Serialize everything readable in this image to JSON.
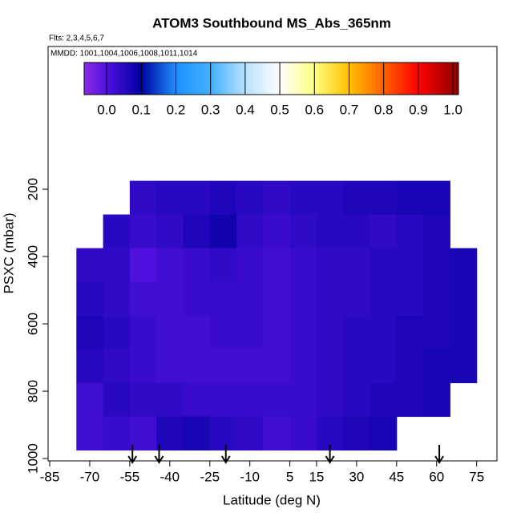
{
  "chart_data": {
    "type": "heatmap",
    "title": "ATOM3 Southbound MS_Abs_365nm",
    "subtitle": "Flts: 2,3,4,5,6,7",
    "annotation": "MMDD: 1001,1004,1006,1008,1011,1014",
    "x_label": "Latitude (deg N)",
    "y_label": "PSXC (mbar)",
    "xlim": [
      -85.6,
      82.6
    ],
    "xticks": [
      -85,
      -70,
      -55,
      -40,
      -25,
      -10,
      5,
      15,
      30,
      45,
      60,
      75
    ],
    "ylim": [
      1007,
      -224
    ],
    "yticks": [
      200,
      400,
      600,
      800,
      1000
    ],
    "xbins": [
      -75,
      -65,
      -55,
      -45,
      -35,
      -25,
      -15,
      -5,
      5,
      15,
      25,
      35,
      45,
      55,
      65,
      75
    ],
    "ybins": [
      175,
      275,
      375,
      475,
      575,
      675,
      775,
      875,
      975
    ],
    "z": [
      [
        null,
        null,
        0.04,
        0.05,
        0.05,
        0.06,
        0.05,
        0.04,
        0.05,
        0.05,
        0.06,
        0.06,
        0.07,
        0.07,
        null
      ],
      [
        null,
        0.05,
        0.03,
        0.04,
        0.06,
        0.08,
        0.04,
        0.03,
        0.04,
        0.05,
        0.05,
        0.04,
        0.05,
        0.06,
        null
      ],
      [
        0.04,
        0.04,
        0.0,
        0.02,
        0.03,
        0.04,
        0.03,
        0.02,
        0.03,
        0.04,
        0.04,
        0.05,
        0.05,
        0.06,
        0.07
      ],
      [
        0.05,
        0.04,
        0.02,
        0.02,
        0.03,
        0.03,
        0.03,
        0.02,
        0.03,
        0.04,
        0.04,
        0.05,
        0.05,
        0.06,
        0.07
      ],
      [
        0.06,
        0.05,
        0.03,
        0.02,
        0.02,
        0.03,
        0.03,
        0.02,
        0.03,
        0.04,
        0.05,
        0.05,
        0.06,
        0.06,
        0.07
      ],
      [
        0.05,
        0.04,
        0.03,
        0.02,
        0.02,
        0.02,
        0.02,
        0.02,
        0.03,
        0.04,
        0.05,
        0.05,
        0.06,
        0.07,
        0.07
      ],
      [
        0.02,
        0.05,
        0.04,
        0.04,
        0.03,
        0.03,
        0.03,
        0.03,
        0.03,
        0.04,
        0.05,
        0.06,
        0.06,
        0.07,
        null
      ],
      [
        0.02,
        0.03,
        0.02,
        0.06,
        0.07,
        0.05,
        0.04,
        0.02,
        0.03,
        0.05,
        0.06,
        0.07,
        null,
        null,
        null
      ]
    ],
    "colorbar": {
      "lim": [
        -0.065,
        1.016
      ],
      "ticks": [
        {
          "value": 0,
          "label": "0.0"
        },
        {
          "value": 0.1,
          "label": "0.1"
        },
        {
          "value": 0.2,
          "label": "0.2"
        },
        {
          "value": 0.3,
          "label": "0.3"
        },
        {
          "value": 0.4,
          "label": "0.4"
        },
        {
          "value": 0.5,
          "label": "0.5"
        },
        {
          "value": 0.6,
          "label": "0.6"
        },
        {
          "value": 0.7,
          "label": "0.7"
        },
        {
          "value": 0.8,
          "label": "0.8"
        },
        {
          "value": 0.9,
          "label": "0.9"
        },
        {
          "value": 1,
          "label": "1.0"
        }
      ],
      "stops": [
        [
          -0.065,
          "#8a2be2"
        ],
        [
          0,
          "#5010e0"
        ],
        [
          0.1,
          "#0000a0"
        ],
        [
          0.2,
          "#1e90ff"
        ],
        [
          0.3,
          "#40b0ff"
        ],
        [
          0.4,
          "#b8e2ff"
        ],
        [
          0.5,
          "#ffffff"
        ],
        [
          0.6,
          "#ffff80"
        ],
        [
          0.7,
          "#ffc000"
        ],
        [
          0.8,
          "#ff6000"
        ],
        [
          0.9,
          "#ff0000"
        ],
        [
          1.016,
          "#8b0000"
        ]
      ]
    },
    "arrows": [
      -54,
      -44,
      -19,
      20,
      61
    ]
  }
}
